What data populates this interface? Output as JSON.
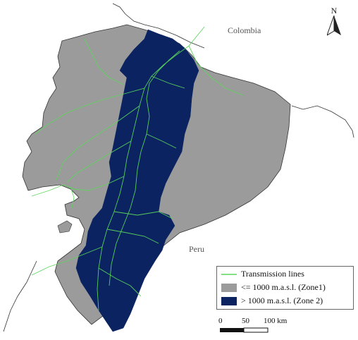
{
  "map": {
    "countries": {
      "colombia": "Colombia",
      "peru": "Peru"
    },
    "north_letter": "N",
    "legend": {
      "items": [
        {
          "label": "Transmission lines",
          "symbol": "line",
          "color": "#5bd65b"
        },
        {
          "label": "<= 1000 m.a.s.l. (Zone1)",
          "symbol": "box",
          "color": "#9b9b9b"
        },
        {
          "label": "> 1000 m.a.s.l. (Zone 2)",
          "symbol": "box",
          "color": "#0b2461"
        }
      ]
    },
    "scale_bar": {
      "ticks": [
        "0",
        "50",
        "100 km"
      ]
    },
    "colors": {
      "zone1": "#9b9b9b",
      "zone2": "#0b2461",
      "lines": "#5bd65b",
      "border": "#333333"
    }
  }
}
